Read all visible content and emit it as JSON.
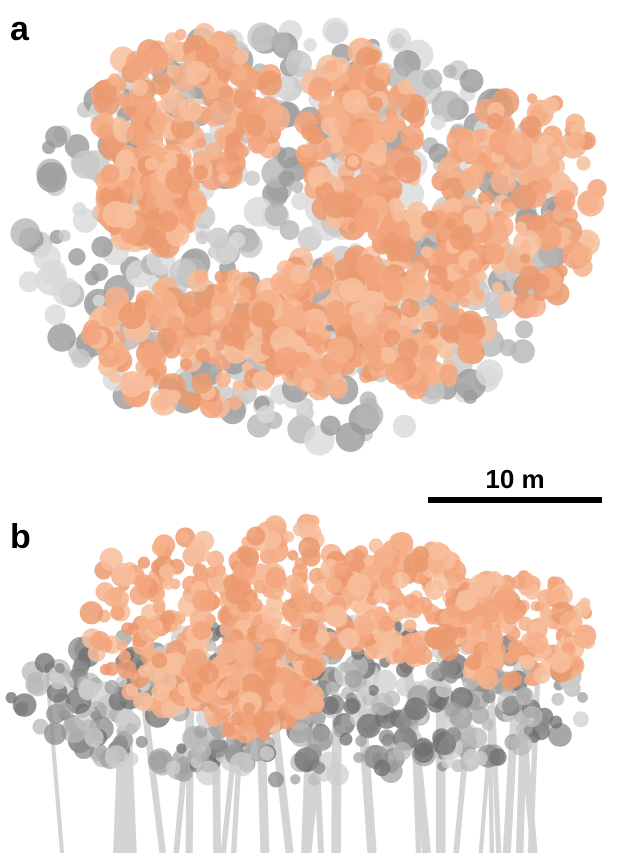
{
  "panels": [
    {
      "label": "a"
    },
    {
      "label": "b"
    }
  ],
  "scale_bar": {
    "label": "10 m"
  }
}
